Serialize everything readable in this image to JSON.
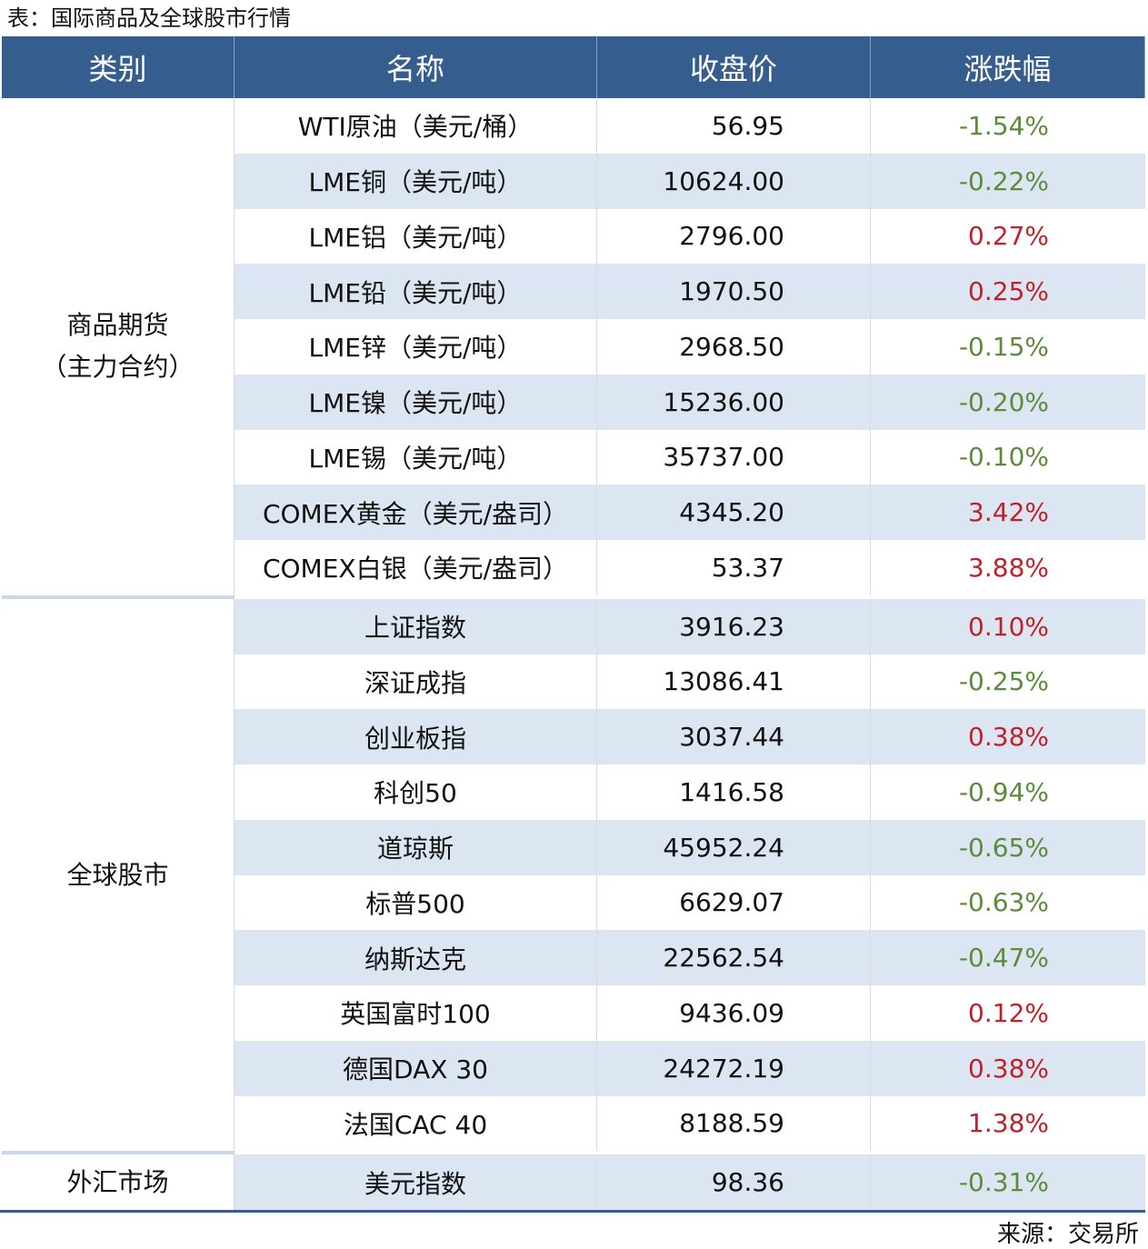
{
  "title": "表：国际商品及全球股市行情",
  "header": [
    "类别",
    "名称",
    "收盘价",
    "涨跌幅"
  ],
  "groups": [
    {
      "label": [
        "商品期货",
        "（主力合约）"
      ],
      "rows": [
        [
          "WTI原油（美元/桶）",
          "56.95",
          "-1.54%"
        ],
        [
          "LME铜（美元/吨）",
          "10624.00",
          "-0.22%"
        ],
        [
          "LME铝（美元/吨）",
          "2796.00",
          "0.27%"
        ],
        [
          "LME铅（美元/吨）",
          "1970.50",
          "0.25%"
        ],
        [
          "LME锌（美元/吨）",
          "2968.50",
          "-0.15%"
        ],
        [
          "LME镍（美元/吨）",
          "15236.00",
          "-0.20%"
        ],
        [
          "LME锡（美元/吨）",
          "35737.00",
          "-0.10%"
        ],
        [
          "COMEX黄金（美元/盎司）",
          "4345.20",
          "3.42%"
        ],
        [
          "COMEX白银（美元/盎司）",
          "53.37",
          "3.88%"
        ]
      ]
    },
    {
      "label": [
        "全球股市"
      ],
      "rows": [
        [
          "上证指数",
          "3916.23",
          "0.10%"
        ],
        [
          "深证成指",
          "13086.41",
          "-0.25%"
        ],
        [
          "创业板指",
          "3037.44",
          "0.38%"
        ],
        [
          "科创50",
          "1416.58",
          "-0.94%"
        ],
        [
          "道琼斯",
          "45952.24",
          "-0.65%"
        ],
        [
          "标普500",
          "6629.07",
          "-0.63%"
        ],
        [
          "纳斯达克",
          "22562.54",
          "-0.47%"
        ],
        [
          "英国富时100",
          "9436.09",
          "0.12%"
        ],
        [
          "德国DAX 30",
          "24272.19",
          "0.38%"
        ],
        [
          "法国CAC 40",
          "8188.59",
          "1.38%"
        ]
      ]
    },
    {
      "label": [
        "外汇市场"
      ],
      "rows": [
        [
          "美元指数",
          "98.36",
          "-0.31%"
        ]
      ]
    }
  ],
  "source": "来源：交易所"
}
